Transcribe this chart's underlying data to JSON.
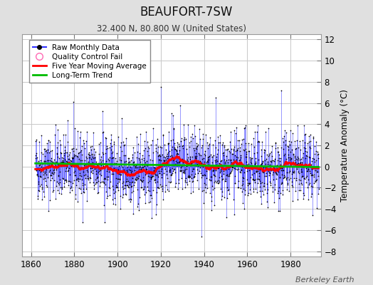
{
  "title": "BEAUFORT-7SW",
  "subtitle": "32.400 N, 80.800 W (United States)",
  "ylabel": "Temperature Anomaly (°C)",
  "credit": "Berkeley Earth",
  "xlim": [
    1856,
    1994
  ],
  "ylim": [
    -8.5,
    12.5
  ],
  "yticks": [
    -8,
    -6,
    -4,
    -2,
    0,
    2,
    4,
    6,
    8,
    10,
    12
  ],
  "xticks": [
    1860,
    1880,
    1900,
    1920,
    1940,
    1960,
    1980
  ],
  "bg_color": "#e0e0e0",
  "plot_bg_color": "#ffffff",
  "grid_color": "#c8c8c8",
  "raw_stem_color": "#3030ff",
  "raw_stem_alpha": 0.7,
  "raw_marker_color": "#000000",
  "moving_avg_color": "#ff0000",
  "trend_color": "#00bb00",
  "seed": 42,
  "years_start": 1862,
  "years_end": 1993
}
